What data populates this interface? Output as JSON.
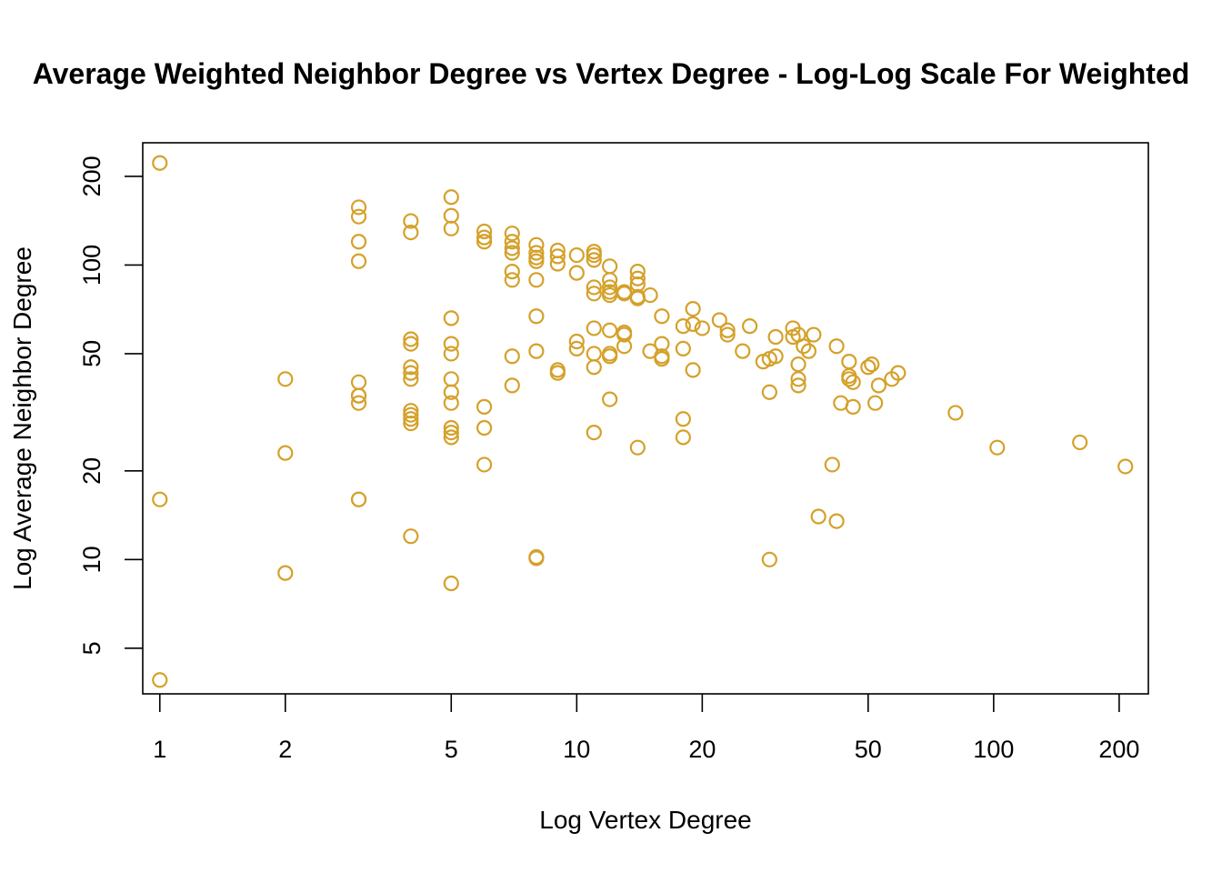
{
  "chart_data": {
    "type": "scatter",
    "title": "Average Weighted Neighbor Degree vs Vertex Degree - Log-Log Scale For Weighted",
    "xlabel": "Log Vertex Degree",
    "ylabel": "Log Average Neighbor Degree",
    "x_scale": "log",
    "y_scale": "log",
    "xlim": [
      0.91,
      235
    ],
    "ylim": [
      3.5,
      260
    ],
    "x_ticks": [
      1,
      2,
      5,
      10,
      20,
      50,
      100,
      200
    ],
    "x_tick_labels": [
      "1",
      "2",
      "5",
      "10",
      "20",
      "50",
      "100",
      "200"
    ],
    "y_ticks": [
      5,
      10,
      20,
      50,
      100,
      200
    ],
    "y_tick_labels": [
      "5",
      "10",
      "20",
      "50",
      "100",
      "200"
    ],
    "grid": false,
    "legend": "none",
    "point_color": "#D4A12A",
    "marker": "open-circle",
    "points": [
      [
        1,
        222
      ],
      [
        1,
        16
      ],
      [
        1,
        3.9
      ],
      [
        2,
        41
      ],
      [
        2,
        23
      ],
      [
        2,
        9
      ],
      [
        3,
        157
      ],
      [
        3,
        146
      ],
      [
        3,
        120
      ],
      [
        3,
        103
      ],
      [
        3,
        40
      ],
      [
        3,
        36
      ],
      [
        3,
        36
      ],
      [
        3,
        34
      ],
      [
        3,
        16
      ],
      [
        3,
        16
      ],
      [
        4,
        141
      ],
      [
        4,
        129
      ],
      [
        4,
        56
      ],
      [
        4,
        54
      ],
      [
        4,
        45
      ],
      [
        4,
        43
      ],
      [
        4,
        41
      ],
      [
        4,
        32
      ],
      [
        4,
        31
      ],
      [
        4,
        30
      ],
      [
        4,
        29
      ],
      [
        4,
        12
      ],
      [
        5,
        170
      ],
      [
        5,
        147
      ],
      [
        5,
        133
      ],
      [
        5,
        66
      ],
      [
        5,
        54
      ],
      [
        5,
        50
      ],
      [
        5,
        41
      ],
      [
        5,
        37
      ],
      [
        5,
        34
      ],
      [
        5,
        28
      ],
      [
        5,
        27
      ],
      [
        5,
        26
      ],
      [
        5,
        8.3
      ],
      [
        6,
        130
      ],
      [
        6,
        124
      ],
      [
        6,
        120
      ],
      [
        6,
        33
      ],
      [
        6,
        28
      ],
      [
        6,
        21
      ],
      [
        7,
        128
      ],
      [
        7,
        120
      ],
      [
        7,
        114
      ],
      [
        7,
        110
      ],
      [
        7,
        95
      ],
      [
        7,
        89
      ],
      [
        7,
        49
      ],
      [
        7,
        39
      ],
      [
        8,
        117
      ],
      [
        8,
        110
      ],
      [
        8,
        106
      ],
      [
        8,
        103
      ],
      [
        8,
        89
      ],
      [
        8,
        67
      ],
      [
        8,
        51
      ],
      [
        8,
        10.2
      ],
      [
        8,
        10.1
      ],
      [
        9,
        112
      ],
      [
        9,
        107
      ],
      [
        9,
        101
      ],
      [
        9,
        44
      ],
      [
        9,
        43
      ],
      [
        10,
        108
      ],
      [
        10,
        94
      ],
      [
        10,
        55
      ],
      [
        10,
        52
      ],
      [
        11,
        111
      ],
      [
        11,
        108
      ],
      [
        11,
        104
      ],
      [
        11,
        84
      ],
      [
        11,
        80
      ],
      [
        11,
        61
      ],
      [
        11,
        50
      ],
      [
        11,
        45
      ],
      [
        11,
        27
      ],
      [
        12,
        99
      ],
      [
        12,
        89
      ],
      [
        12,
        84
      ],
      [
        12,
        81
      ],
      [
        12,
        79
      ],
      [
        12,
        60
      ],
      [
        12,
        50
      ],
      [
        12,
        49
      ],
      [
        12,
        35
      ],
      [
        13,
        81
      ],
      [
        13,
        80
      ],
      [
        13,
        59
      ],
      [
        13,
        58
      ],
      [
        13,
        53
      ],
      [
        14,
        95
      ],
      [
        14,
        90
      ],
      [
        14,
        86
      ],
      [
        14,
        78
      ],
      [
        14,
        77
      ],
      [
        14,
        24
      ],
      [
        15,
        79
      ],
      [
        15,
        51
      ],
      [
        16,
        67
      ],
      [
        16,
        54
      ],
      [
        16,
        49
      ],
      [
        16,
        48
      ],
      [
        18,
        62
      ],
      [
        18,
        52
      ],
      [
        18,
        30
      ],
      [
        18,
        26
      ],
      [
        19,
        71
      ],
      [
        19,
        63
      ],
      [
        19,
        44
      ],
      [
        20,
        61
      ],
      [
        22,
        65
      ],
      [
        23,
        60
      ],
      [
        23,
        58
      ],
      [
        25,
        51
      ],
      [
        26,
        62
      ],
      [
        28,
        47
      ],
      [
        29,
        48
      ],
      [
        29,
        37
      ],
      [
        29,
        10
      ],
      [
        30,
        57
      ],
      [
        30,
        49
      ],
      [
        33,
        61
      ],
      [
        33,
        57
      ],
      [
        34,
        58
      ],
      [
        34,
        46
      ],
      [
        34,
        41
      ],
      [
        34,
        39
      ],
      [
        35,
        53
      ],
      [
        36,
        51
      ],
      [
        37,
        58
      ],
      [
        38,
        14
      ],
      [
        41,
        21
      ],
      [
        42,
        13.5
      ],
      [
        42,
        53
      ],
      [
        43,
        34
      ],
      [
        45,
        47
      ],
      [
        45,
        42
      ],
      [
        45,
        41
      ],
      [
        46,
        40
      ],
      [
        46,
        33
      ],
      [
        50,
        45
      ],
      [
        51,
        46
      ],
      [
        52,
        34
      ],
      [
        53,
        39
      ],
      [
        57,
        41
      ],
      [
        59,
        43
      ],
      [
        81,
        31.5
      ],
      [
        102,
        24
      ],
      [
        161,
        25
      ],
      [
        207,
        20.7
      ]
    ]
  }
}
